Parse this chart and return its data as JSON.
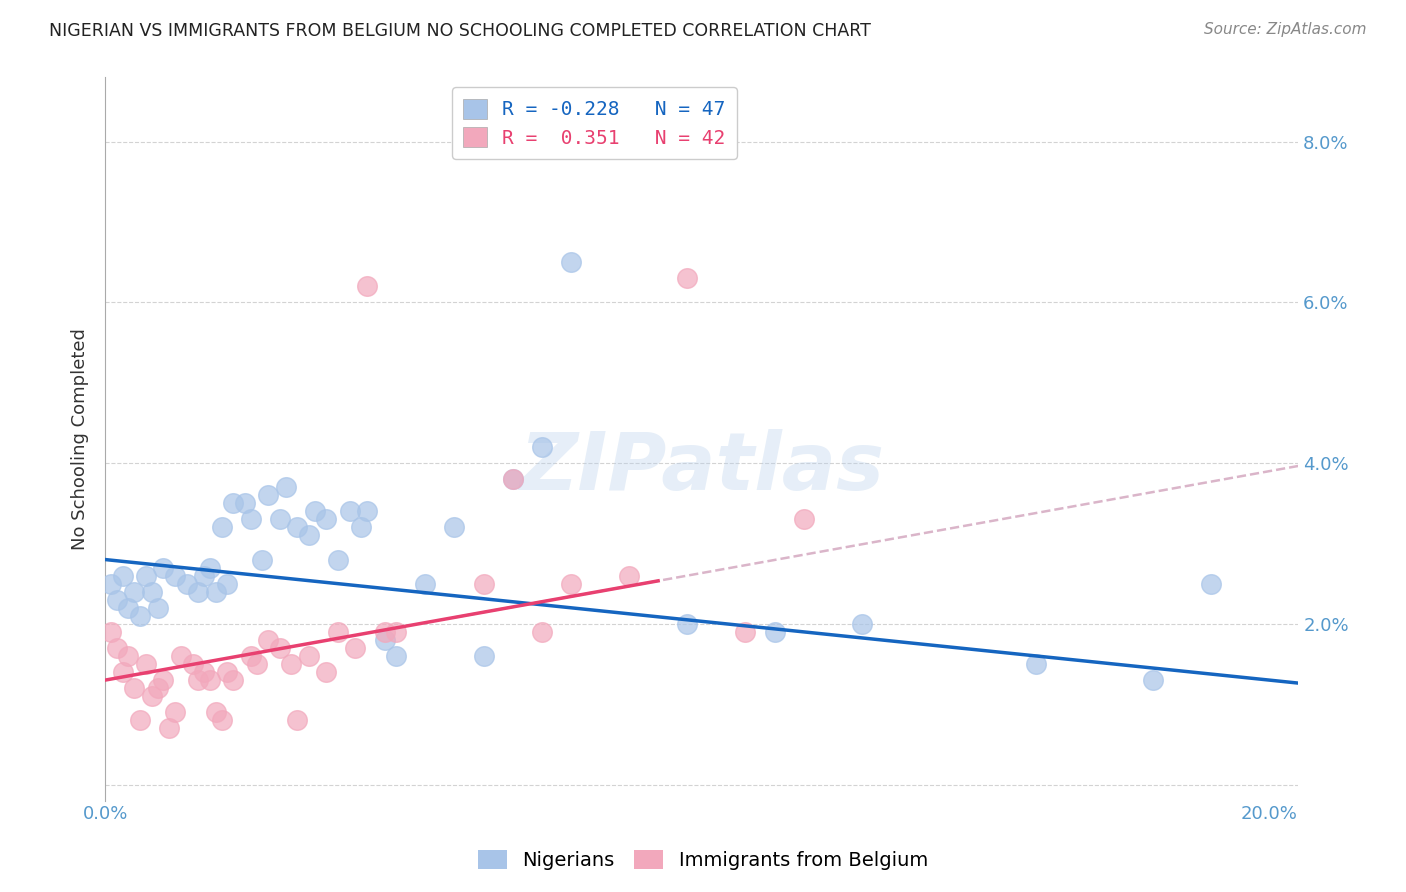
{
  "title": "NIGERIAN VS IMMIGRANTS FROM BELGIUM NO SCHOOLING COMPLETED CORRELATION CHART",
  "source": "Source: ZipAtlas.com",
  "ylabel": "No Schooling Completed",
  "xlim": [
    0.0,
    0.205
  ],
  "ylim": [
    -0.002,
    0.088
  ],
  "xticks": [
    0.0,
    0.04,
    0.08,
    0.12,
    0.16,
    0.2
  ],
  "yticks": [
    0.0,
    0.02,
    0.04,
    0.06,
    0.08
  ],
  "blue_color": "#a8c4e8",
  "pink_color": "#f2a8bc",
  "trendline_blue_color": "#1565c0",
  "trendline_pink_color": "#e84070",
  "trendline_dashed_color": "#d4a8c0",
  "watermark_text": "ZIPatlas",
  "legend_r_blue": "-0.228",
  "legend_n_blue": "47",
  "legend_r_pink": "0.351",
  "legend_n_pink": "42",
  "blue_intercept": 0.028,
  "blue_slope": -0.075,
  "pink_intercept": 0.013,
  "pink_slope": 0.13,
  "blue_x": [
    0.001,
    0.002,
    0.003,
    0.004,
    0.005,
    0.006,
    0.007,
    0.008,
    0.009,
    0.01,
    0.012,
    0.014,
    0.016,
    0.017,
    0.018,
    0.019,
    0.02,
    0.021,
    0.022,
    0.024,
    0.025,
    0.027,
    0.028,
    0.03,
    0.031,
    0.033,
    0.035,
    0.036,
    0.038,
    0.04,
    0.042,
    0.044,
    0.045,
    0.048,
    0.05,
    0.055,
    0.06,
    0.065,
    0.07,
    0.075,
    0.08,
    0.1,
    0.115,
    0.13,
    0.16,
    0.18,
    0.19
  ],
  "blue_y": [
    0.025,
    0.023,
    0.026,
    0.022,
    0.024,
    0.021,
    0.026,
    0.024,
    0.022,
    0.027,
    0.026,
    0.025,
    0.024,
    0.026,
    0.027,
    0.024,
    0.032,
    0.025,
    0.035,
    0.035,
    0.033,
    0.028,
    0.036,
    0.033,
    0.037,
    0.032,
    0.031,
    0.034,
    0.033,
    0.028,
    0.034,
    0.032,
    0.034,
    0.018,
    0.016,
    0.025,
    0.032,
    0.016,
    0.038,
    0.042,
    0.065,
    0.02,
    0.019,
    0.02,
    0.015,
    0.013,
    0.025
  ],
  "pink_x": [
    0.001,
    0.002,
    0.003,
    0.004,
    0.005,
    0.006,
    0.007,
    0.008,
    0.009,
    0.01,
    0.011,
    0.012,
    0.013,
    0.015,
    0.016,
    0.017,
    0.018,
    0.019,
    0.02,
    0.021,
    0.022,
    0.025,
    0.026,
    0.028,
    0.03,
    0.032,
    0.033,
    0.035,
    0.038,
    0.04,
    0.043,
    0.045,
    0.048,
    0.05,
    0.065,
    0.07,
    0.075,
    0.08,
    0.09,
    0.1,
    0.11,
    0.12
  ],
  "pink_y": [
    0.019,
    0.017,
    0.014,
    0.016,
    0.012,
    0.008,
    0.015,
    0.011,
    0.012,
    0.013,
    0.007,
    0.009,
    0.016,
    0.015,
    0.013,
    0.014,
    0.013,
    0.009,
    0.008,
    0.014,
    0.013,
    0.016,
    0.015,
    0.018,
    0.017,
    0.015,
    0.008,
    0.016,
    0.014,
    0.019,
    0.017,
    0.062,
    0.019,
    0.019,
    0.025,
    0.038,
    0.019,
    0.025,
    0.026,
    0.063,
    0.019,
    0.033
  ]
}
